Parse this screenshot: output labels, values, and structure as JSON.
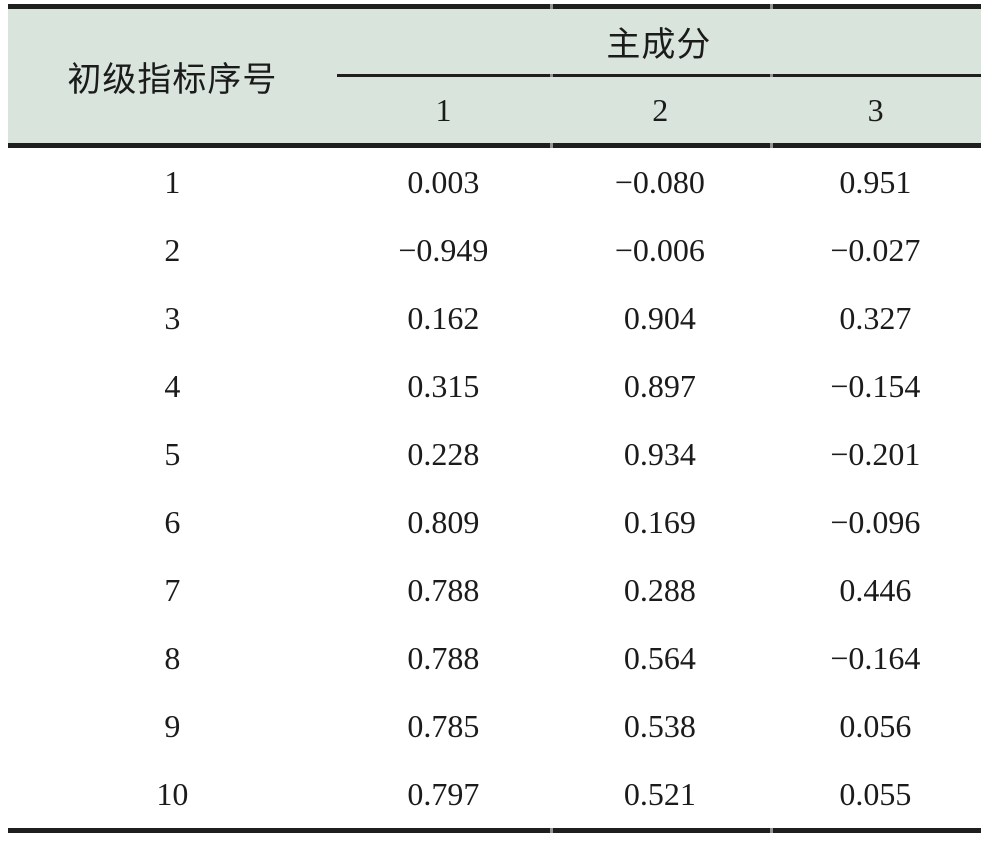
{
  "table": {
    "header": {
      "row_label_column": "初级指标序号",
      "group_label": "主成分",
      "sub_columns": [
        "1",
        "2",
        "3"
      ]
    },
    "rows": [
      {
        "id": "1",
        "values": [
          "0.003",
          "−0.080",
          "0.951"
        ]
      },
      {
        "id": "2",
        "values": [
          "−0.949",
          "−0.006",
          "−0.027"
        ]
      },
      {
        "id": "3",
        "values": [
          "0.162",
          "0.904",
          "0.327"
        ]
      },
      {
        "id": "4",
        "values": [
          "0.315",
          "0.897",
          "−0.154"
        ]
      },
      {
        "id": "5",
        "values": [
          "0.228",
          "0.934",
          "−0.201"
        ]
      },
      {
        "id": "6",
        "values": [
          "0.809",
          "0.169",
          "−0.096"
        ]
      },
      {
        "id": "7",
        "values": [
          "0.788",
          "0.288",
          "0.446"
        ]
      },
      {
        "id": "8",
        "values": [
          "0.788",
          "0.564",
          "−0.164"
        ]
      },
      {
        "id": "9",
        "values": [
          "0.785",
          "0.538",
          "0.056"
        ]
      },
      {
        "id": "10",
        "values": [
          "0.797",
          "0.521",
          "0.055"
        ]
      }
    ],
    "colors": {
      "header_background": "#d8e4dc",
      "rule": "#1f1f1f",
      "text": "#1b1b1b",
      "page_background": "#ffffff"
    }
  },
  "chart_data": {
    "type": "table",
    "title": "",
    "columns": [
      "初级指标序号",
      "主成分 1",
      "主成分 2",
      "主成分 3"
    ],
    "column_group": {
      "label": "主成分",
      "spans": [
        "1",
        "2",
        "3"
      ]
    },
    "rows": [
      [
        1,
        0.003,
        -0.08,
        0.951
      ],
      [
        2,
        -0.949,
        -0.006,
        -0.027
      ],
      [
        3,
        0.162,
        0.904,
        0.327
      ],
      [
        4,
        0.315,
        0.897,
        -0.154
      ],
      [
        5,
        0.228,
        0.934,
        -0.201
      ],
      [
        6,
        0.809,
        0.169,
        -0.096
      ],
      [
        7,
        0.788,
        0.288,
        0.446
      ],
      [
        8,
        0.788,
        0.564,
        -0.164
      ],
      [
        9,
        0.785,
        0.538,
        0.056
      ],
      [
        10,
        0.797,
        0.521,
        0.055
      ]
    ],
    "layout_hints": {
      "style": "three-line academic table",
      "header_background": "#d8e4dc",
      "grid": "horizontal rules only"
    }
  }
}
